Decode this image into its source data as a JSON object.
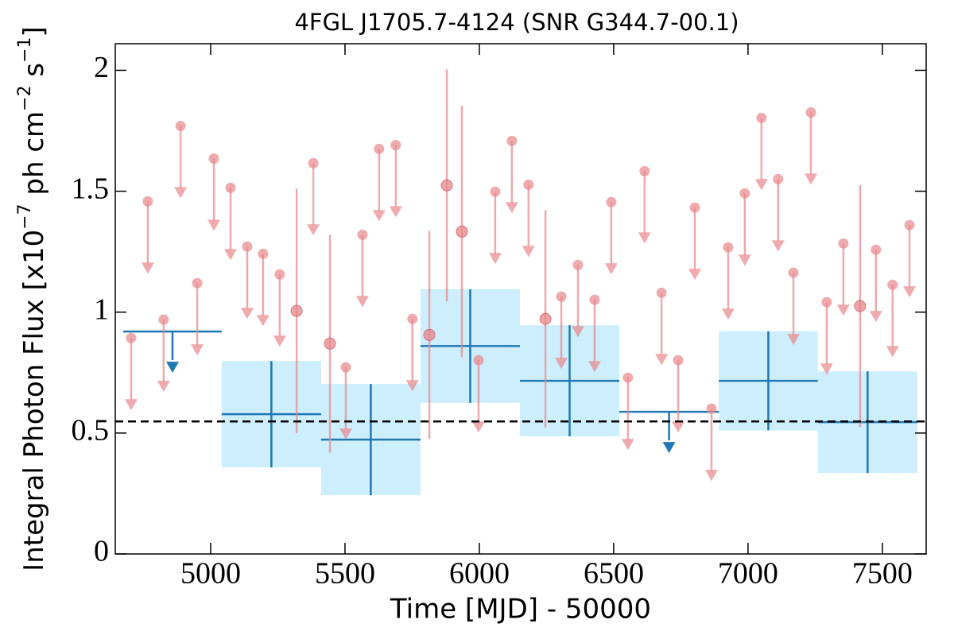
{
  "chart_data": {
    "type": "lightcurve",
    "title": "4FGL J1705.7-4124 (SNR G344.7-00.1)",
    "x_label": "Time [MJD] - 50000",
    "y_label": [
      "Integral Photon Flux [x10",
      "−7",
      " ph cm",
      "−2",
      " s",
      "−1",
      "]"
    ],
    "xlim": [
      4645,
      7663
    ],
    "ylim": [
      0,
      2.11
    ],
    "xticks": [
      5000,
      5500,
      6000,
      6500,
      7000,
      7500
    ],
    "yticks": [
      0,
      0.5,
      1,
      1.5,
      2
    ],
    "reference_level": 0.548,
    "upper_limits": {
      "color": "#e8868a",
      "x": [
        4704,
        4766,
        4825,
        4888,
        4950,
        5012,
        5074,
        5136,
        5195,
        5257,
        5382,
        5503,
        5565,
        5627,
        5689,
        5751,
        5997,
        6059,
        6121,
        6183,
        6305,
        6367,
        6429,
        6491,
        6553,
        6615,
        6678,
        6740,
        6802,
        6864,
        6926,
        6988,
        7050,
        7112,
        7169,
        7234,
        7293,
        7355,
        7476,
        7538,
        7601
      ],
      "values": [
        0.893,
        1.458,
        0.969,
        1.77,
        1.12,
        1.635,
        1.514,
        1.271,
        1.241,
        1.156,
        1.616,
        0.772,
        1.32,
        1.675,
        1.691,
        0.972,
        0.801,
        1.498,
        1.708,
        1.527,
        1.064,
        1.195,
        1.051,
        1.455,
        0.729,
        1.583,
        1.08,
        0.801,
        1.432,
        0.601,
        1.268,
        1.491,
        1.803,
        1.55,
        1.163,
        1.826,
        1.041,
        1.284,
        1.258,
        1.113,
        1.36
      ]
    },
    "detections": {
      "color": "#e8868a",
      "x": [
        5320,
        5444,
        5814,
        5879,
        5935,
        6246,
        7417
      ],
      "values": [
        1.005,
        0.87,
        0.906,
        1.524,
        1.333,
        0.972,
        1.025
      ],
      "errors": [
        0.505,
        0.45,
        0.43,
        0.48,
        0.52,
        0.45,
        0.5
      ]
    },
    "bins": {
      "color": "#1f77b4",
      "band_color": "#cdeefc",
      "x_lo": [
        5041,
        5411,
        5781,
        6151,
        6891,
        7260
      ],
      "x_hi": [
        5411,
        5781,
        6151,
        6521,
        7260,
        7630
      ],
      "values": [
        0.578,
        0.473,
        0.86,
        0.716,
        0.716,
        0.545
      ],
      "errors": [
        0.22,
        0.23,
        0.235,
        0.23,
        0.205,
        0.21
      ]
    },
    "bin_upper_limits": {
      "color": "#1f77b4",
      "x_lo": [
        4675,
        6521
      ],
      "x_hi": [
        5041,
        6891
      ],
      "values": [
        0.92,
        0.588
      ]
    }
  }
}
